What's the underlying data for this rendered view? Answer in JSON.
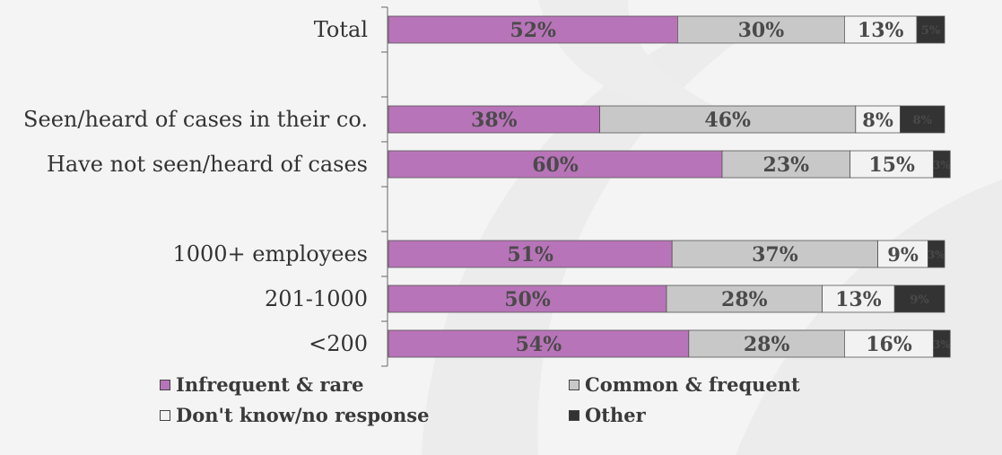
{
  "chart_data": {
    "type": "bar",
    "orientation": "horizontal",
    "stacked": true,
    "percent": true,
    "categories": [
      "Total",
      "",
      "Seen/heard of cases in their co.",
      "Have not seen/heard of cases",
      "",
      "1000+ employees",
      "201-1000",
      "<200"
    ],
    "series": [
      {
        "name": "Infrequent & rare",
        "color": "#b874b8",
        "values": [
          52,
          null,
          38,
          60,
          null,
          51,
          50,
          54
        ],
        "labels": [
          "52%",
          "",
          "38%",
          "60%",
          "",
          "51%",
          "50%",
          "54%"
        ]
      },
      {
        "name": "Common & frequent",
        "color": "#c8c8c8",
        "values": [
          30,
          null,
          46,
          23,
          null,
          37,
          28,
          28
        ],
        "labels": [
          "30%",
          "",
          "46%",
          "23%",
          "",
          "37%",
          "28%",
          "28%"
        ]
      },
      {
        "name": "Don't know/no response",
        "color": "#f2f2f2",
        "values": [
          13,
          null,
          8,
          15,
          null,
          9,
          13,
          16
        ],
        "labels": [
          "13%",
          "",
          "8%",
          "15%",
          "",
          "9%",
          "13%",
          "16%"
        ]
      },
      {
        "name": "Other",
        "color": "#333333",
        "values": [
          5,
          null,
          8,
          3,
          null,
          3,
          9,
          3
        ],
        "labels": [
          "5%",
          "",
          "8%",
          "3%",
          "",
          "3%",
          "9%",
          "3%"
        ]
      }
    ],
    "xlim": [
      0,
      100
    ],
    "legend_position": "bottom",
    "grid": false
  },
  "legend": [
    {
      "label": "Infrequent & rare",
      "color": "#b874b8"
    },
    {
      "label": "Common & frequent",
      "color": "#c8c8c8"
    },
    {
      "label": "Don't know/no response",
      "color": "#f2f2f2"
    },
    {
      "label": "Other",
      "color": "#333333"
    }
  ]
}
